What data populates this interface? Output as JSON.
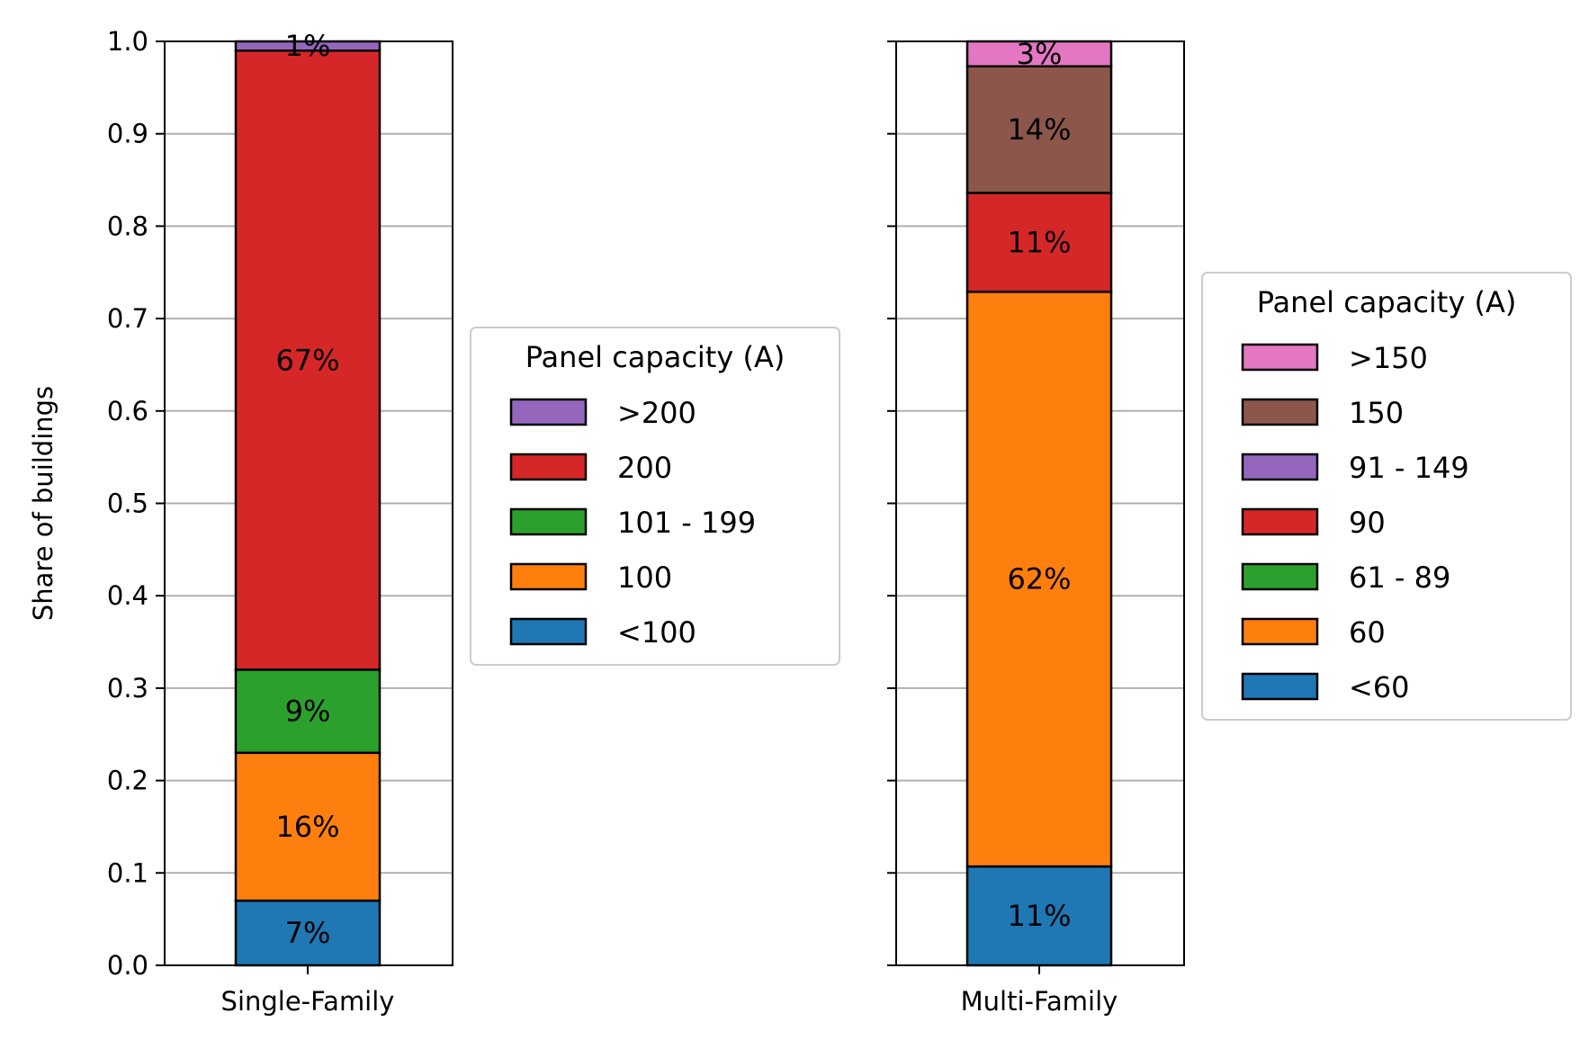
{
  "chart_data": [
    {
      "type": "bar",
      "stacked": true,
      "categories": [
        "Single-Family"
      ],
      "ylabel": "Share of buildings",
      "ylim": [
        0,
        1.0
      ],
      "yticks": [
        "0.0",
        "0.1",
        "0.2",
        "0.3",
        "0.4",
        "0.5",
        "0.6",
        "0.7",
        "0.8",
        "0.9",
        "1.0"
      ],
      "grid": "horizontal",
      "legend": {
        "title": "Panel capacity (A)",
        "placement": "right-center"
      },
      "series": [
        {
          "name": "<100",
          "values": [
            0.07
          ],
          "label": "7%",
          "color": "#1f77b4"
        },
        {
          "name": "100",
          "values": [
            0.16
          ],
          "label": "16%",
          "color": "#ff7f0e"
        },
        {
          "name": "101 - 199",
          "values": [
            0.09
          ],
          "label": "9%",
          "color": "#2ca02c"
        },
        {
          "name": "200",
          "values": [
            0.67
          ],
          "label": "67%",
          "color": "#d62728"
        },
        {
          "name": ">200",
          "values": [
            0.01
          ],
          "label": "1%",
          "color": "#9467bd"
        }
      ]
    },
    {
      "type": "bar",
      "stacked": true,
      "categories": [
        "Multi-Family"
      ],
      "ylim": [
        0,
        1.0
      ],
      "grid": "horizontal",
      "legend": {
        "title": "Panel capacity (A)",
        "placement": "right-center"
      },
      "series": [
        {
          "name": "<60",
          "values": [
            0.107
          ],
          "label": "11%",
          "color": "#1f77b4"
        },
        {
          "name": "60",
          "values": [
            0.622
          ],
          "label": "62%",
          "color": "#ff7f0e"
        },
        {
          "name": "61 - 89",
          "values": [
            0.0
          ],
          "label": "",
          "color": "#2ca02c"
        },
        {
          "name": "90",
          "values": [
            0.107
          ],
          "label": "11%",
          "color": "#d62728"
        },
        {
          "name": "91 - 149",
          "values": [
            0.0
          ],
          "label": "",
          "color": "#9467bd"
        },
        {
          "name": "150",
          "values": [
            0.137
          ],
          "label": "14%",
          "color": "#8c564b"
        },
        {
          "name": ">150",
          "values": [
            0.027
          ],
          "label": "3%",
          "color": "#e377c2"
        }
      ]
    }
  ]
}
